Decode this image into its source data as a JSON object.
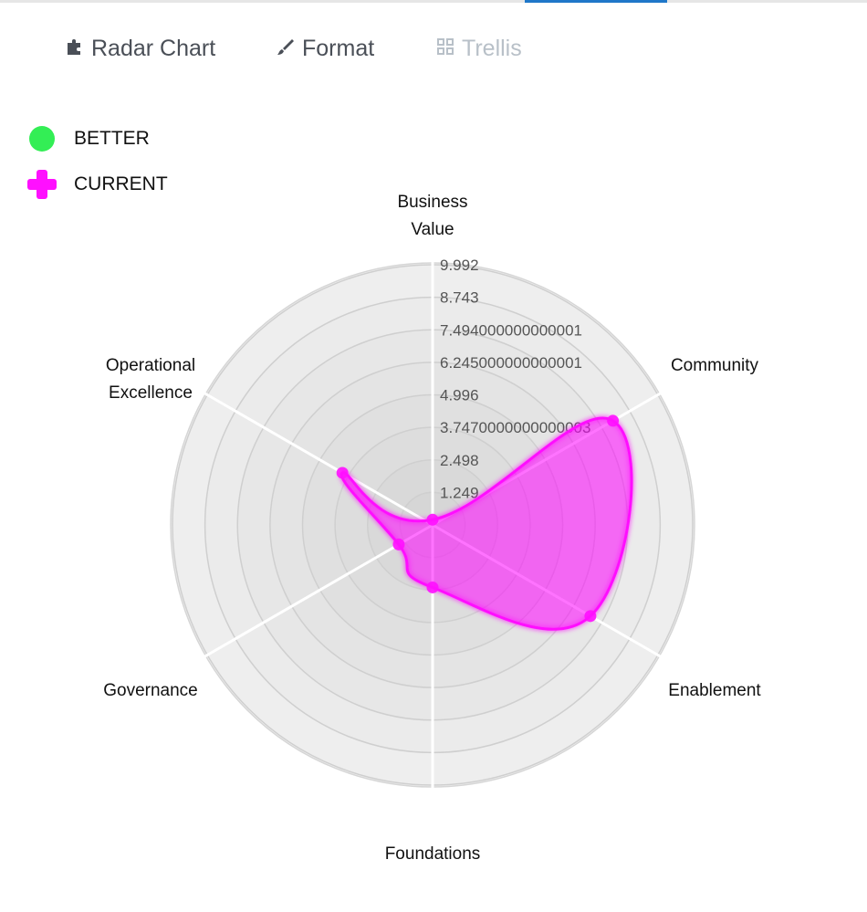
{
  "tabs": [
    {
      "label": "Radar Chart",
      "icon": "puzzle-icon"
    },
    {
      "label": "Format",
      "icon": "brush-icon"
    },
    {
      "label": "Trellis",
      "icon": "grid-icon"
    }
  ],
  "colors": {
    "better": "#33ee55",
    "current": "#ff10ff",
    "accent": "#1f77c9"
  },
  "chart_data": {
    "type": "radar",
    "axes": [
      "Business\nValue",
      "Community",
      "Enablement",
      "Foundations",
      "Governance",
      "Operational\nExcellence"
    ],
    "rlim": [
      0,
      9.992
    ],
    "ticks": [
      "9.992",
      "8.743",
      "7.494000000000001",
      "6.245000000000001",
      "4.996",
      "3.7470000000000003",
      "2.498",
      "1.249"
    ],
    "legend": [
      {
        "name": "BETTER",
        "symbol": "circle"
      },
      {
        "name": "CURRENT",
        "symbol": "cross"
      }
    ],
    "series": [
      {
        "name": "CURRENT",
        "values": [
          0.2,
          8.0,
          7.0,
          2.4,
          1.5,
          4.0
        ]
      }
    ]
  }
}
